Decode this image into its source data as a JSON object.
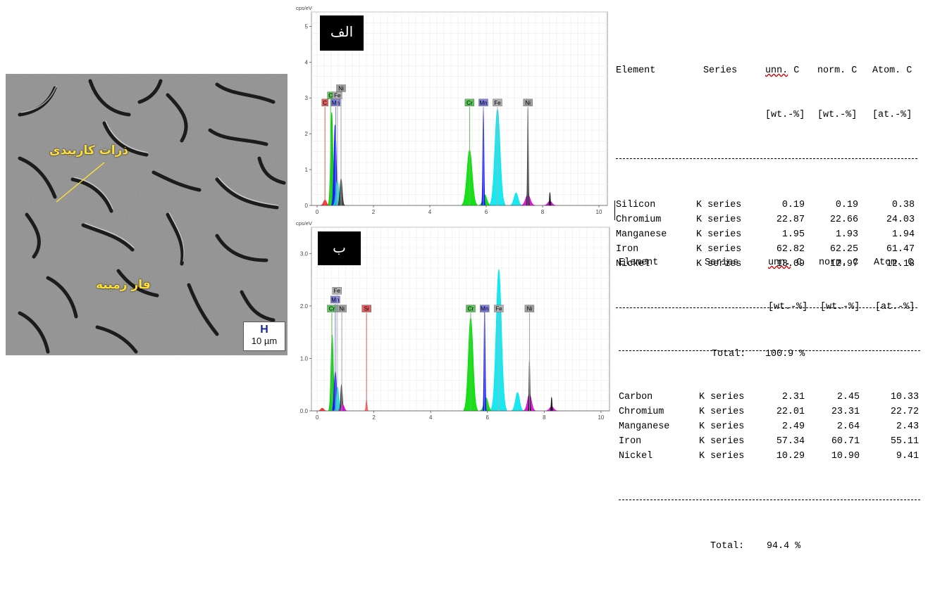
{
  "sem": {
    "label_carbide": "ذرات کاربیدی",
    "label_matrix": "فاز زمینه",
    "scale_symbol": "H",
    "scale_text": "10 µm"
  },
  "spectra": [
    {
      "tag": "الف",
      "ylabel": "cps/eV",
      "ylim": [
        0,
        5.4
      ],
      "xlim": [
        -0.2,
        10.3
      ],
      "yticks": [
        0,
        1,
        2,
        3,
        4,
        5
      ],
      "ytick_labels": [
        "0",
        "1",
        "2",
        "3",
        "4",
        "5"
      ],
      "xticks": [
        0,
        2,
        4,
        6,
        8,
        10
      ],
      "element_labels": [
        {
          "text": "C",
          "color": "#e06060",
          "energy": 0.28,
          "y": 2.87
        },
        {
          "text": "C",
          "color": "#5cc25c",
          "energy": 0.48,
          "y": 3.07
        },
        {
          "text": "Mn",
          "color": "#7f7fe0",
          "energy": 0.66,
          "y": 2.87
        },
        {
          "text": "Fe",
          "color": "#b0b0b0",
          "energy": 0.72,
          "y": 3.07
        },
        {
          "text": "Ni",
          "color": "#a0a0a0",
          "energy": 0.85,
          "y": 3.27
        },
        {
          "text": "Cr",
          "color": "#5cc25c",
          "energy": 5.41,
          "y": 2.87
        },
        {
          "text": "Mn",
          "color": "#7f7fe0",
          "energy": 5.9,
          "y": 2.87
        },
        {
          "text": "Fe",
          "color": "#b0b0b0",
          "energy": 6.4,
          "y": 2.87
        },
        {
          "text": "Ni",
          "color": "#a0a0a0",
          "energy": 7.48,
          "y": 2.87
        }
      ],
      "peaks": [
        {
          "energy": 0.28,
          "height": 0.15,
          "color": "#ff2020",
          "width": 0.05
        },
        {
          "energy": 0.52,
          "height": 2.6,
          "color": "#00cc00",
          "width": 0.04
        },
        {
          "energy": 0.64,
          "height": 2.25,
          "color": "#1010ff",
          "width": 0.04
        },
        {
          "energy": 0.72,
          "height": 0.7,
          "color": "#00e0e0",
          "width": 0.05
        },
        {
          "energy": 0.85,
          "height": 0.75,
          "color": "#333333",
          "width": 0.04
        },
        {
          "energy": 5.41,
          "height": 1.55,
          "color": "#00dd00",
          "width": 0.09
        },
        {
          "energy": 5.95,
          "height": 0.3,
          "color": "#00dd00",
          "width": 0.07
        },
        {
          "energy": 5.9,
          "height": 2.7,
          "color": "#1010ff",
          "width": 0.02
        },
        {
          "energy": 6.4,
          "height": 2.7,
          "color": "#00e5ee",
          "width": 0.09
        },
        {
          "energy": 7.06,
          "height": 0.35,
          "color": "#00e5ee",
          "width": 0.07
        },
        {
          "energy": 7.48,
          "height": 0.3,
          "color": "#dd00dd",
          "width": 0.08
        },
        {
          "energy": 7.48,
          "height": 2.7,
          "color": "#111111",
          "width": 0.015
        },
        {
          "energy": 8.26,
          "height": 0.12,
          "color": "#dd00dd",
          "width": 0.07
        },
        {
          "energy": 8.26,
          "height": 0.35,
          "color": "#111111",
          "width": 0.015
        }
      ]
    },
    {
      "tag": "ب",
      "ylabel": "cps/eV",
      "ylim": [
        0,
        3.5
      ],
      "xlim": [
        -0.2,
        10.3
      ],
      "yticks": [
        0,
        1,
        2,
        3
      ],
      "ytick_labels": [
        "0.0",
        "1.0",
        "2.0",
        "3.0"
      ],
      "xticks": [
        0,
        2,
        4,
        6,
        8,
        10
      ],
      "element_labels": [
        {
          "text": "Cr",
          "color": "#5cc25c",
          "energy": 0.52,
          "y": 1.95
        },
        {
          "text": "Mn",
          "color": "#7f7fe0",
          "energy": 0.64,
          "y": 2.12
        },
        {
          "text": "Fe",
          "color": "#b0b0b0",
          "energy": 0.7,
          "y": 2.29
        },
        {
          "text": "Ni",
          "color": "#a0a0a0",
          "energy": 0.87,
          "y": 1.95
        },
        {
          "text": "Si",
          "color": "#e06060",
          "energy": 1.74,
          "y": 1.95
        },
        {
          "text": "Cr",
          "color": "#5cc25c",
          "energy": 5.41,
          "y": 1.95
        },
        {
          "text": "Mn",
          "color": "#7f7fe0",
          "energy": 5.9,
          "y": 1.95
        },
        {
          "text": "Fe",
          "color": "#b0b0b0",
          "energy": 6.4,
          "y": 1.95
        },
        {
          "text": "Ni",
          "color": "#a0a0a0",
          "energy": 7.48,
          "y": 1.95
        }
      ],
      "peaks": [
        {
          "energy": 0.18,
          "height": 0.05,
          "color": "#ff2020",
          "width": 0.05
        },
        {
          "energy": 0.53,
          "height": 1.45,
          "color": "#00cc00",
          "width": 0.04
        },
        {
          "energy": 0.64,
          "height": 0.75,
          "color": "#1010ff",
          "width": 0.04
        },
        {
          "energy": 0.72,
          "height": 0.45,
          "color": "#00e0e0",
          "width": 0.04
        },
        {
          "energy": 0.86,
          "height": 0.5,
          "color": "#333333",
          "width": 0.03
        },
        {
          "energy": 0.9,
          "height": 0.12,
          "color": "#dd00dd",
          "width": 0.05
        },
        {
          "energy": 1.74,
          "height": 0.2,
          "color": "#ff6060",
          "width": 0.02
        },
        {
          "energy": 5.41,
          "height": 1.78,
          "color": "#00dd00",
          "width": 0.08
        },
        {
          "energy": 5.95,
          "height": 0.25,
          "color": "#00dd00",
          "width": 0.07
        },
        {
          "energy": 5.9,
          "height": 1.9,
          "color": "#1010ff",
          "width": 0.02
        },
        {
          "energy": 6.4,
          "height": 2.7,
          "color": "#00e5ee",
          "width": 0.09
        },
        {
          "energy": 7.06,
          "height": 0.35,
          "color": "#00e5ee",
          "width": 0.07
        },
        {
          "energy": 7.48,
          "height": 0.32,
          "color": "#dd00dd",
          "width": 0.07
        },
        {
          "energy": 7.48,
          "height": 0.95,
          "color": "#111111",
          "width": 0.015
        },
        {
          "energy": 8.26,
          "height": 0.08,
          "color": "#dd00dd",
          "width": 0.07
        },
        {
          "energy": 8.26,
          "height": 0.25,
          "color": "#111111",
          "width": 0.015
        }
      ]
    }
  ],
  "tables": [
    {
      "headers": [
        "Element",
        "Series",
        "unn. C",
        "norm. C",
        "Atom. C"
      ],
      "subheaders": [
        "",
        "",
        "[wt.-%]",
        "[wt.-%]",
        "[at.-%]"
      ],
      "rows": [
        [
          "Silicon",
          "K series",
          "0.19",
          "0.19",
          "0.38"
        ],
        [
          "Chromium",
          "K series",
          "22.87",
          "22.66",
          "24.03"
        ],
        [
          "Manganese",
          "K series",
          "1.95",
          "1.93",
          "1.94"
        ],
        [
          "Iron",
          "K series",
          "62.82",
          "62.25",
          "61.47"
        ],
        [
          "Nickel",
          "K series",
          "13.09",
          "12.97",
          "12.18"
        ]
      ],
      "total_label": "Total:",
      "total_value": "100.9 %"
    },
    {
      "headers": [
        "Element",
        "Series",
        "unn. C",
        "norm. C",
        "Atom. C"
      ],
      "subheaders": [
        "",
        "",
        "[wt.-%]",
        "[wt.-%]",
        "[at.-%]"
      ],
      "rows": [
        [
          "Carbon",
          "K series",
          "2.31",
          "2.45",
          "10.33"
        ],
        [
          "Chromium",
          "K series",
          "22.01",
          "23.31",
          "22.72"
        ],
        [
          "Manganese",
          "K series",
          "2.49",
          "2.64",
          "2.43"
        ],
        [
          "Iron",
          "K series",
          "57.34",
          "60.71",
          "55.11"
        ],
        [
          "Nickel",
          "K series",
          "10.29",
          "10.90",
          "9.41"
        ]
      ],
      "total_label": "Total:",
      "total_value": "94.4 %"
    }
  ]
}
